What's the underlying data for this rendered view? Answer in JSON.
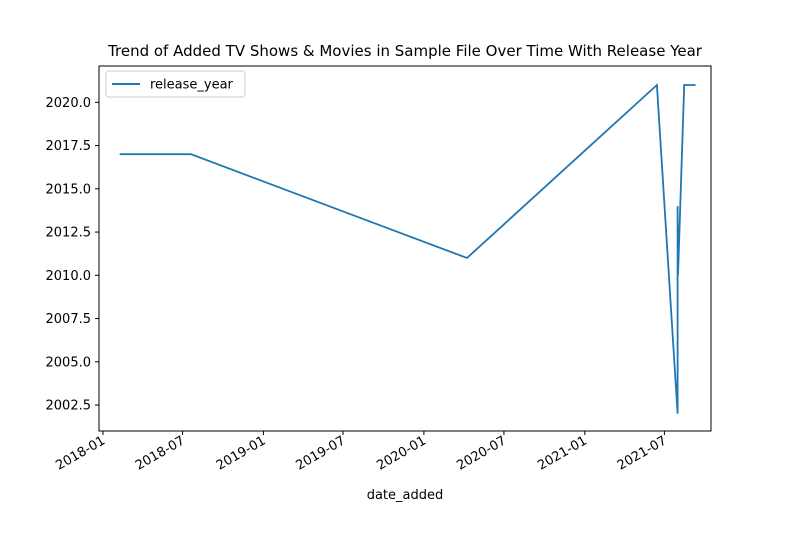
{
  "chart_data": {
    "type": "line",
    "title": "Trend of Added TV Shows & Movies in Sample File Over Time With Release Year",
    "xlabel": "date_added",
    "ylabel": "",
    "ylim": [
      2001.0,
      2022.1
    ],
    "xlim": [
      "2017-12-23",
      "2021-10-15"
    ],
    "x_ticks": [
      "2018-01",
      "2018-07",
      "2019-01",
      "2019-07",
      "2020-01",
      "2020-07",
      "2021-01",
      "2021-07"
    ],
    "y_ticks": [
      "2002.5",
      "2005.0",
      "2007.5",
      "2010.0",
      "2012.5",
      "2015.0",
      "2017.5",
      "2020.0"
    ],
    "legend": {
      "position": "top-left"
    },
    "grid": false,
    "color": "#1f77b4",
    "series": [
      {
        "name": "release_year",
        "x": [
          "2018-02-08",
          "2018-07-20",
          "2020-04-08",
          "2021-06-14",
          "2021-07-31",
          "2021-07-31",
          "2021-08-01",
          "2021-08-15",
          "2021-09-10"
        ],
        "y": [
          2017,
          2017,
          2011,
          2021,
          2002,
          2014,
          2010,
          2021,
          2021
        ]
      }
    ]
  }
}
